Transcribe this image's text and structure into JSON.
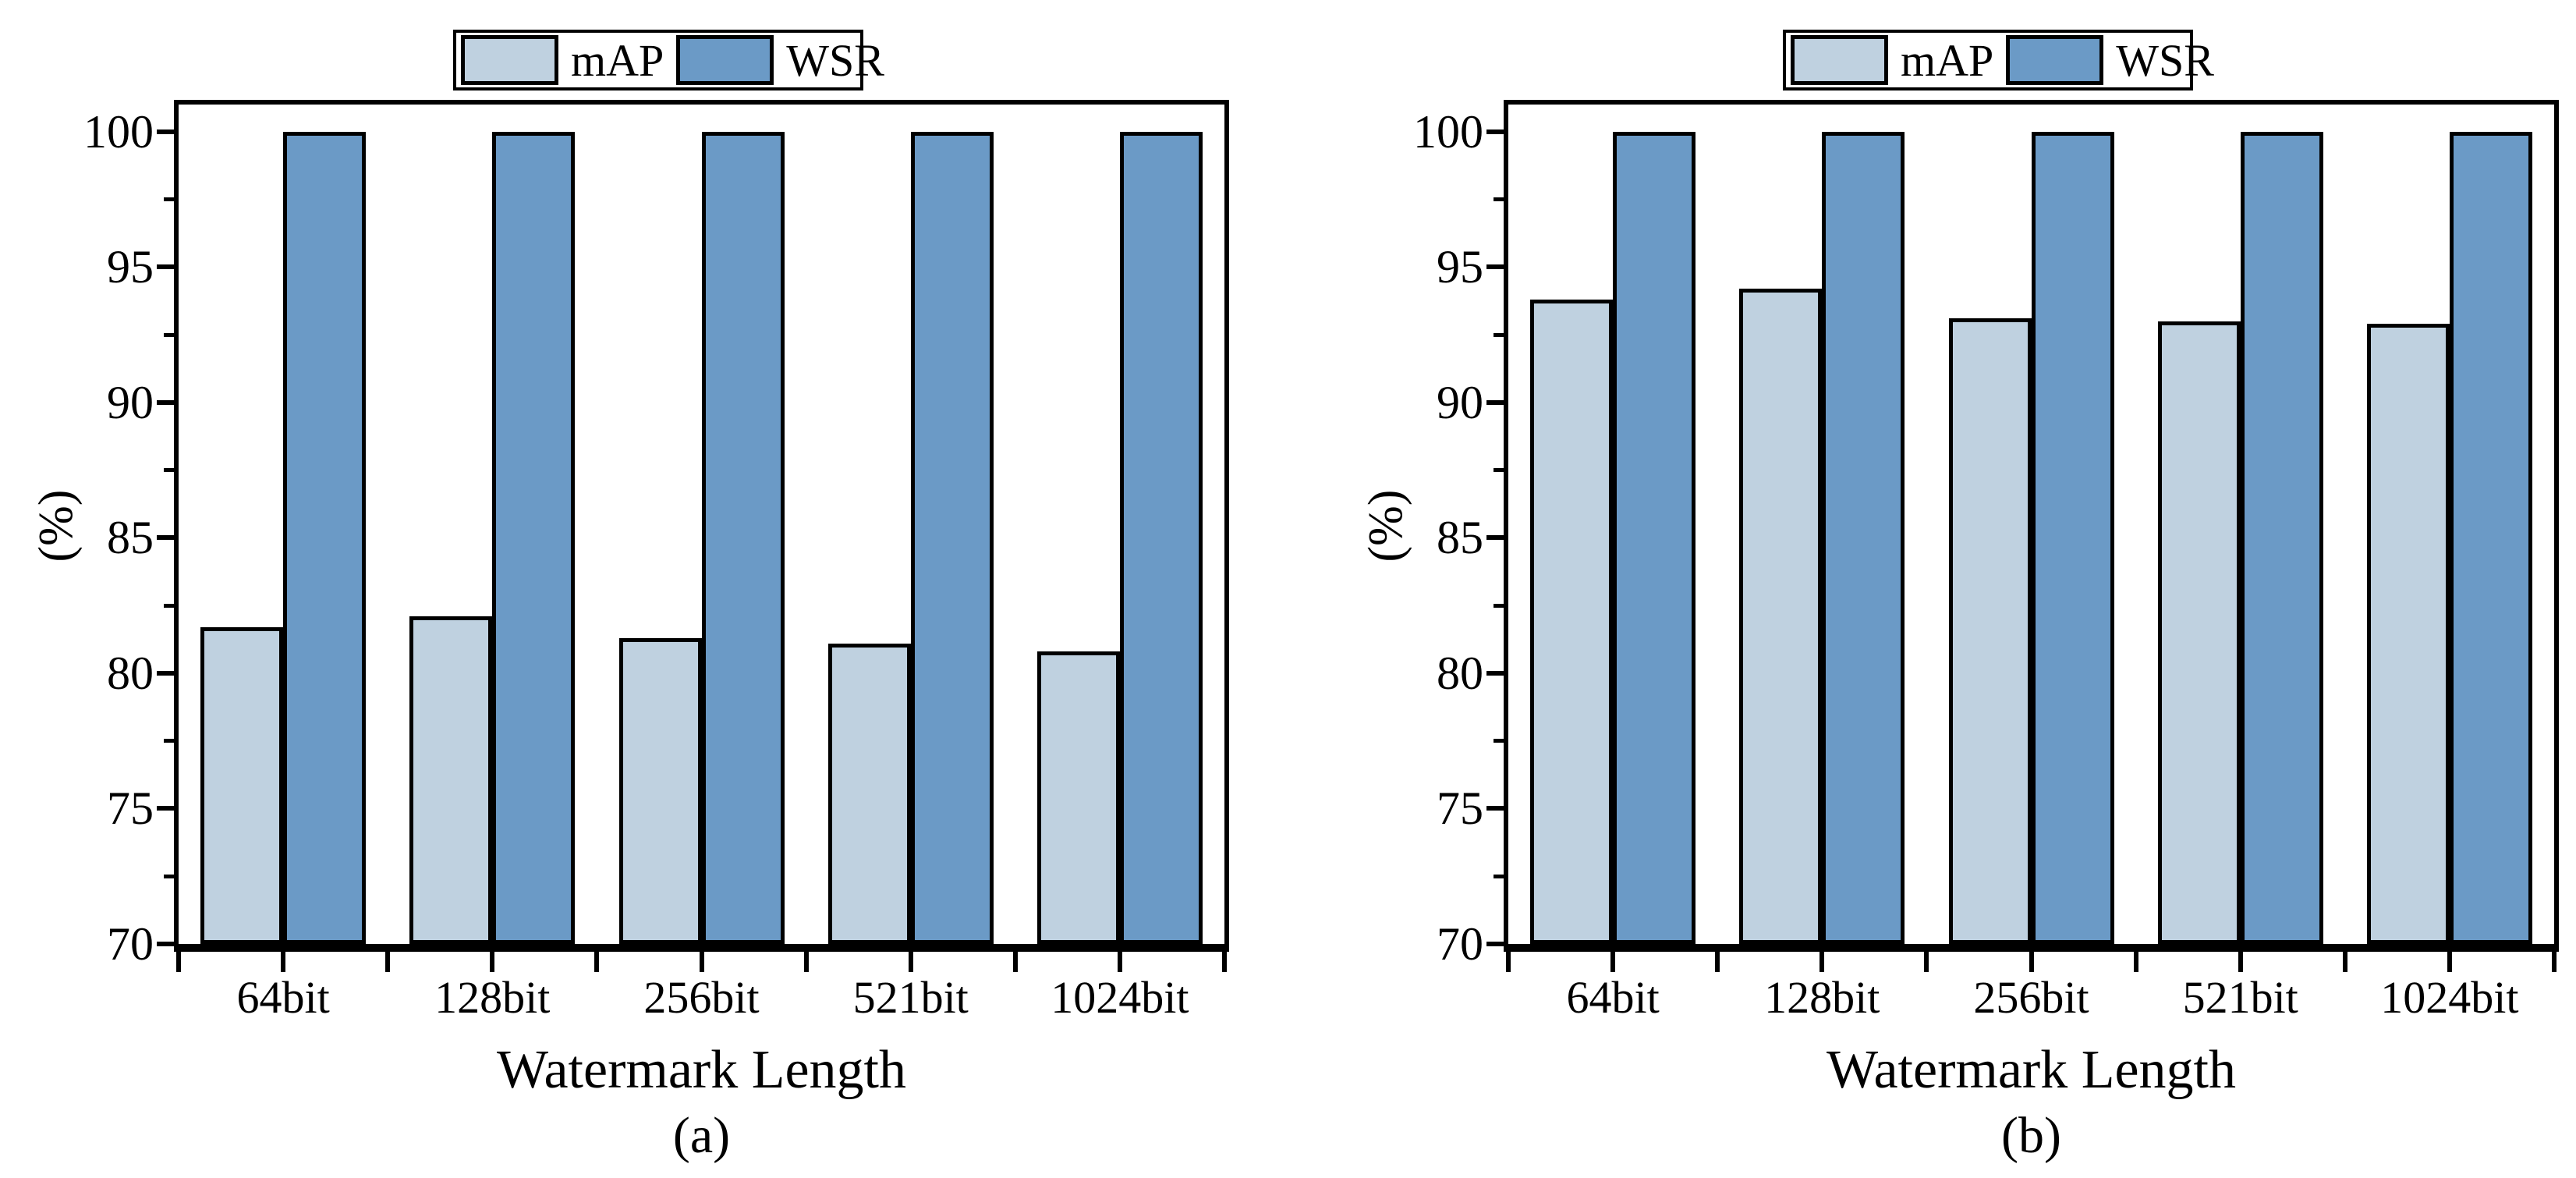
{
  "figure": {
    "background": "#ffffff",
    "axis_color": "#000000",
    "bar_border_color": "#000000"
  },
  "legend": {
    "items": [
      {
        "label": "mAP",
        "color": "#bfd1e0"
      },
      {
        "label": "WSR",
        "color": "#6b9ac6"
      }
    ]
  },
  "chart_data": [
    {
      "type": "bar",
      "panel_label": "(a)",
      "xlabel": "Watermark Length",
      "ylabel": "(%)",
      "categories": [
        "64bit",
        "128bit",
        "256bit",
        "521bit",
        "1024bit"
      ],
      "series": [
        {
          "name": "mAP",
          "color": "#bfd1e0",
          "values": [
            81.7,
            82.1,
            81.3,
            81.1,
            80.8
          ]
        },
        {
          "name": "WSR",
          "color": "#6b9ac6",
          "values": [
            100,
            100,
            100,
            100,
            100
          ]
        }
      ],
      "ylim": [
        70,
        101
      ],
      "yticks_major": [
        70,
        75,
        80,
        85,
        90,
        95,
        100
      ],
      "yticks_minor": [
        72.5,
        77.5,
        82.5,
        87.5,
        92.5,
        97.5
      ],
      "legend_position": "top-center",
      "grid": false
    },
    {
      "type": "bar",
      "panel_label": "(b)",
      "xlabel": "Watermark Length",
      "ylabel": "(%)",
      "categories": [
        "64bit",
        "128bit",
        "256bit",
        "521bit",
        "1024bit"
      ],
      "series": [
        {
          "name": "mAP",
          "color": "#bfd1e0",
          "values": [
            93.8,
            94.2,
            93.1,
            93.0,
            92.9
          ]
        },
        {
          "name": "WSR",
          "color": "#6b9ac6",
          "values": [
            100,
            100,
            100,
            100,
            100
          ]
        }
      ],
      "ylim": [
        70,
        101
      ],
      "yticks_major": [
        70,
        75,
        80,
        85,
        90,
        95,
        100
      ],
      "yticks_minor": [
        72.5,
        77.5,
        82.5,
        87.5,
        92.5,
        97.5
      ],
      "legend_position": "top-center",
      "grid": false
    }
  ]
}
